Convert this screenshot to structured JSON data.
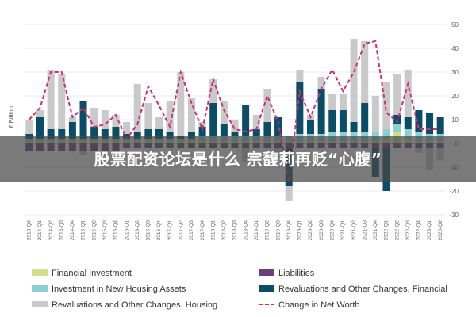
{
  "banner": {
    "title": "股票配资论坛是什么 宗馥莉再贬“心腹”"
  },
  "chart_data": {
    "type": "bar",
    "stacked": true,
    "ylabel": "€ Billion",
    "ylim": [
      -30,
      50
    ],
    "yticks": [
      -30,
      -20,
      -10,
      0,
      10,
      20,
      30,
      40,
      50
    ],
    "grid": true,
    "legend_position": "bottom",
    "categories": [
      "2013-Q4",
      "2014-Q1",
      "2014-Q2",
      "2014-Q3",
      "2014-Q4",
      "2015-Q1",
      "2015-Q2",
      "2015-Q3",
      "2015-Q4",
      "2016-Q1",
      "2016-Q2",
      "2016-Q3",
      "2016-Q4",
      "2017-Q1",
      "2017-Q2",
      "2017-Q3",
      "2017-Q4",
      "2018-Q1",
      "2018-Q2",
      "2018-Q3",
      "2018-Q4",
      "2019-Q1",
      "2019-Q2",
      "2019-Q3",
      "2019-Q4",
      "2020-Q1",
      "2020-Q2",
      "2020-Q3",
      "2020-Q4",
      "2021-Q1",
      "2021-Q2",
      "2021-Q3",
      "2021-Q4",
      "2022-Q1",
      "2022-Q2",
      "2022-Q3",
      "2022-Q4",
      "2023-Q1",
      "2023-Q2"
    ],
    "series": [
      {
        "name": "Financial Investment",
        "color": "#d4df8a",
        "kind": "bar",
        "values": [
          1,
          1,
          1,
          1,
          1,
          1,
          1,
          1,
          1,
          1,
          1,
          1,
          1,
          1,
          1,
          1,
          1,
          1,
          1,
          1,
          1,
          1,
          1,
          1,
          1,
          1,
          1,
          1,
          1,
          1,
          1,
          1,
          1,
          2,
          5,
          2,
          1,
          1,
          1
        ]
      },
      {
        "name": "Liabilities",
        "color": "#6b3d7a",
        "kind": "bar",
        "values": [
          -3,
          -3,
          -3,
          -3,
          -3,
          -3,
          -3,
          -3,
          -3,
          -2,
          -2,
          -2,
          -2,
          -2,
          -2,
          -2,
          -2,
          -2,
          -2,
          -2,
          -2,
          -2,
          -2,
          -2,
          -2,
          -2,
          -2,
          -2,
          -2,
          -2,
          -2,
          -2,
          -2,
          -2,
          -2,
          -2,
          -2,
          -2,
          -2
        ]
      },
      {
        "name": "Investment in New Housing Assets",
        "color": "#8ccfd0",
        "kind": "bar",
        "values": [
          1,
          1,
          1,
          1,
          1,
          1,
          1,
          1,
          1,
          1,
          1,
          1,
          1,
          1,
          1,
          1,
          2,
          2,
          2,
          2,
          2,
          2,
          2,
          2,
          2,
          3,
          3,
          3,
          4,
          4,
          4,
          4,
          4,
          4,
          3,
          4,
          4,
          3,
          3
        ]
      },
      {
        "name": "Revaluations and Other Changes, Financial",
        "color": "#0b4d66",
        "kind": "bar",
        "values": [
          2,
          9,
          4,
          4,
          7,
          16,
          5,
          4,
          5,
          2,
          3,
          4,
          4,
          3,
          1,
          3,
          4,
          14,
          5,
          2,
          13,
          3,
          6,
          8,
          -16,
          22,
          6,
          19,
          9,
          9,
          4,
          12,
          -12,
          -18,
          4,
          5,
          9,
          9,
          7
        ]
      },
      {
        "name": "Revaluations and Other Changes, Housing",
        "color": "#c9c9c9",
        "kind": "bar",
        "values": [
          6,
          3,
          25,
          23,
          2,
          -2,
          8,
          8,
          5,
          5,
          20,
          11,
          5,
          13,
          27,
          14,
          2,
          10,
          10,
          5,
          -6,
          6,
          14,
          -2,
          -6,
          5,
          2,
          5,
          7,
          7,
          35,
          26,
          15,
          20,
          17,
          20,
          -2,
          -9,
          -5
        ]
      },
      {
        "name": "Change in Net Worth",
        "color": "#cc2f74",
        "kind": "line",
        "values": [
          10,
          15,
          30,
          30,
          11,
          15,
          7,
          8,
          12,
          2,
          8,
          24,
          16,
          7,
          30,
          17,
          6,
          27,
          14,
          6,
          5,
          6,
          20,
          9,
          -16,
          22,
          11,
          23,
          31,
          22,
          30,
          42,
          43,
          13,
          9,
          25,
          6,
          6,
          6
        ]
      }
    ]
  }
}
